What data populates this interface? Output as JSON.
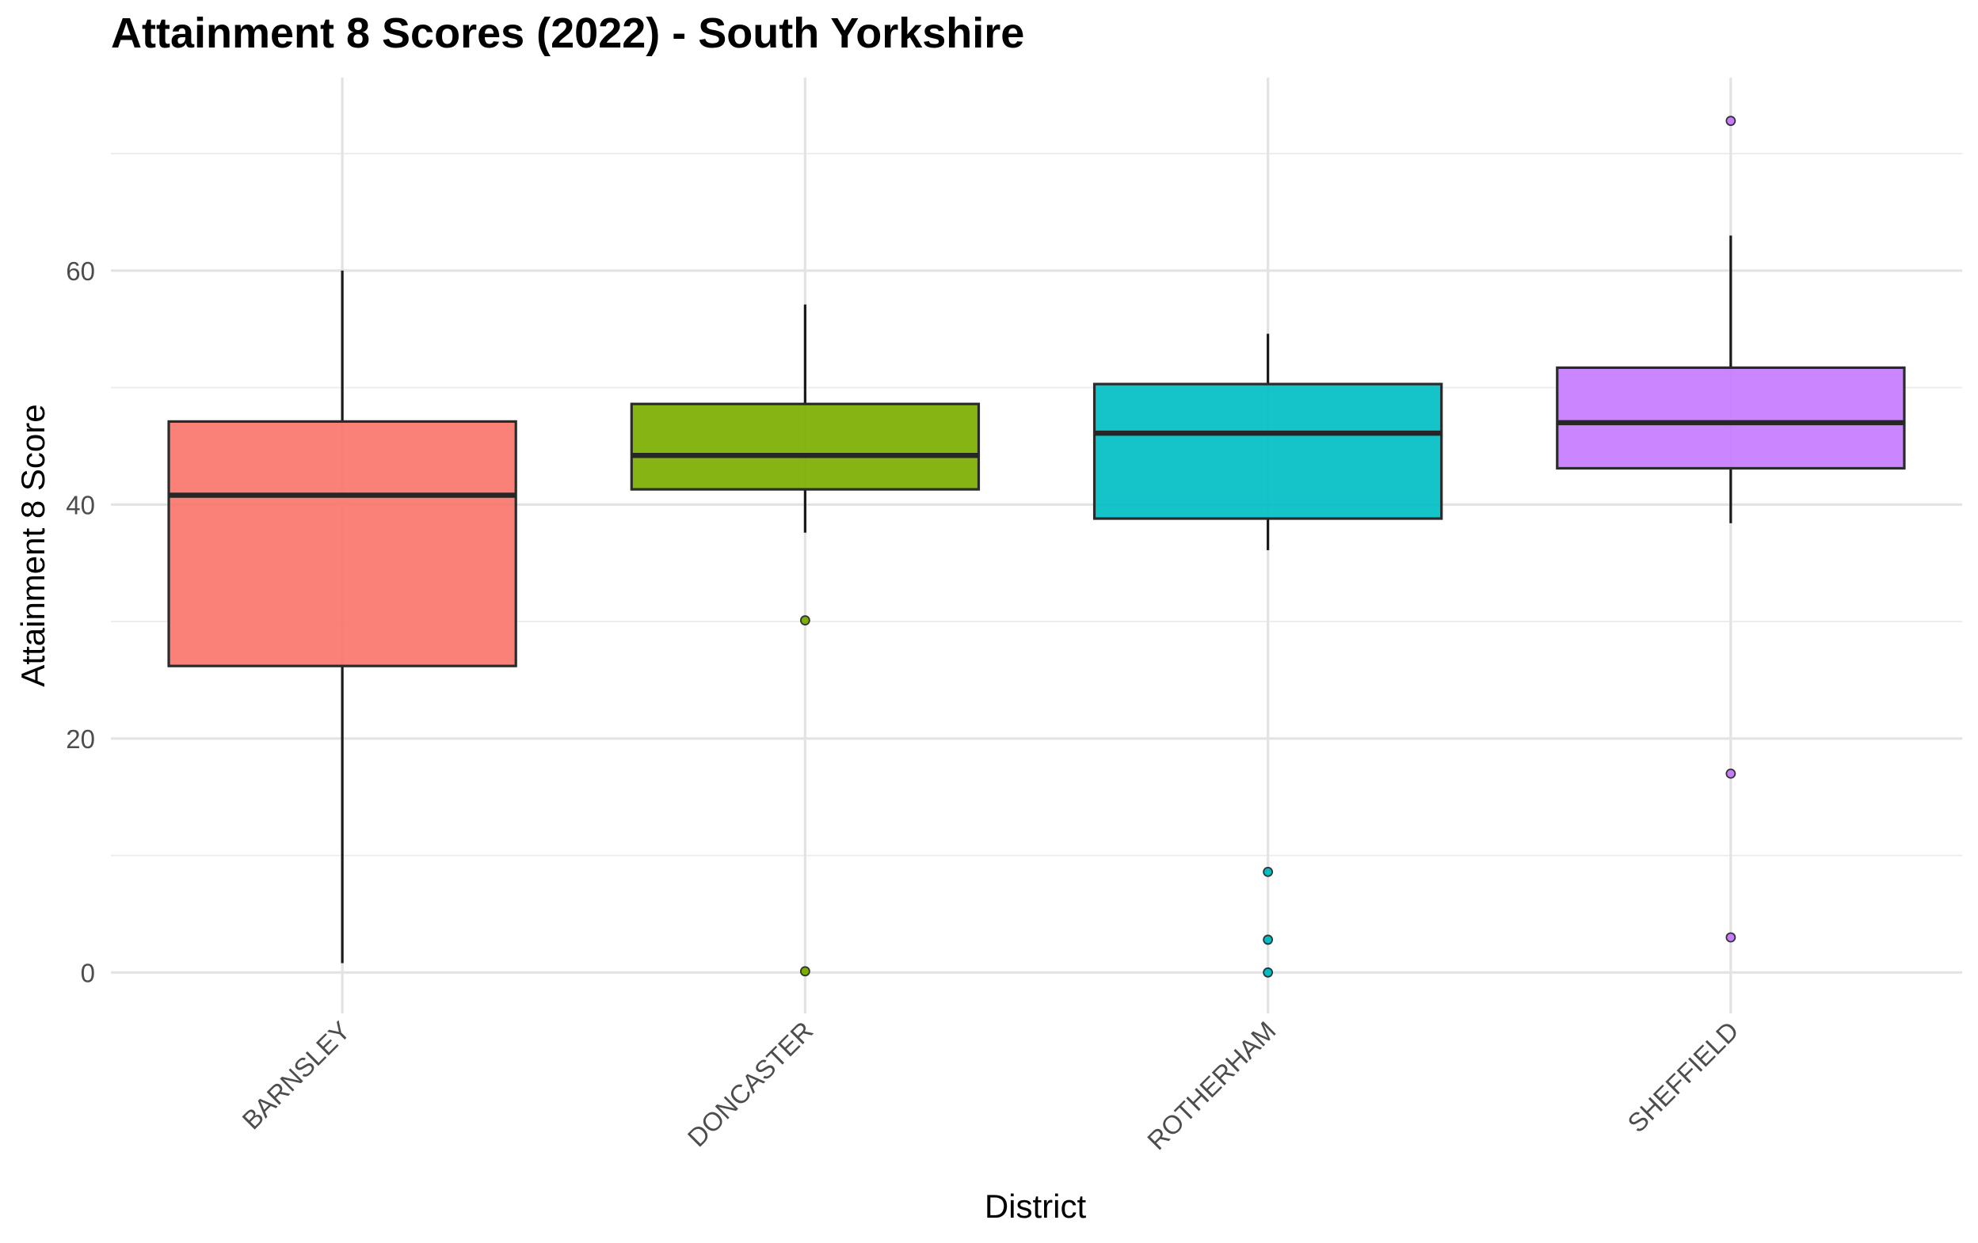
{
  "chart_data": {
    "type": "boxplot",
    "title": "Attainment 8 Scores (2022) - South Yorkshire",
    "xlabel": "District",
    "ylabel": "Attainment 8 Score",
    "ylim": [
      -3.5,
      76.5
    ],
    "y_ticks": [
      0,
      20,
      40,
      60
    ],
    "y_tick_labels": [
      "0",
      "20",
      "40",
      "60"
    ],
    "categories": [
      "BARNSLEY",
      "DONCASTER",
      "ROTHERHAM",
      "SHEFFIELD"
    ],
    "colors": [
      "#F8766D",
      "#7CAE00",
      "#00BFC4",
      "#C77CFF"
    ],
    "grid": true,
    "legend": "none",
    "series": [
      {
        "category": "BARNSLEY",
        "whisker_low": 0.8,
        "q1": 26.2,
        "median": 40.8,
        "q3": 47.1,
        "whisker_high": 60.0,
        "outliers": []
      },
      {
        "category": "DONCASTER",
        "whisker_low": 37.6,
        "q1": 41.3,
        "median": 44.2,
        "q3": 48.6,
        "whisker_high": 57.1,
        "outliers": [
          30.1,
          0.1
        ]
      },
      {
        "category": "ROTHERHAM",
        "whisker_low": 36.1,
        "q1": 38.8,
        "median": 46.1,
        "q3": 50.3,
        "whisker_high": 54.6,
        "outliers": [
          8.6,
          2.8,
          0.0
        ]
      },
      {
        "category": "SHEFFIELD",
        "whisker_low": 38.4,
        "q1": 43.1,
        "median": 47.0,
        "q3": 51.7,
        "whisker_high": 63.0,
        "outliers": [
          72.8,
          17.0,
          3.0
        ]
      }
    ]
  }
}
